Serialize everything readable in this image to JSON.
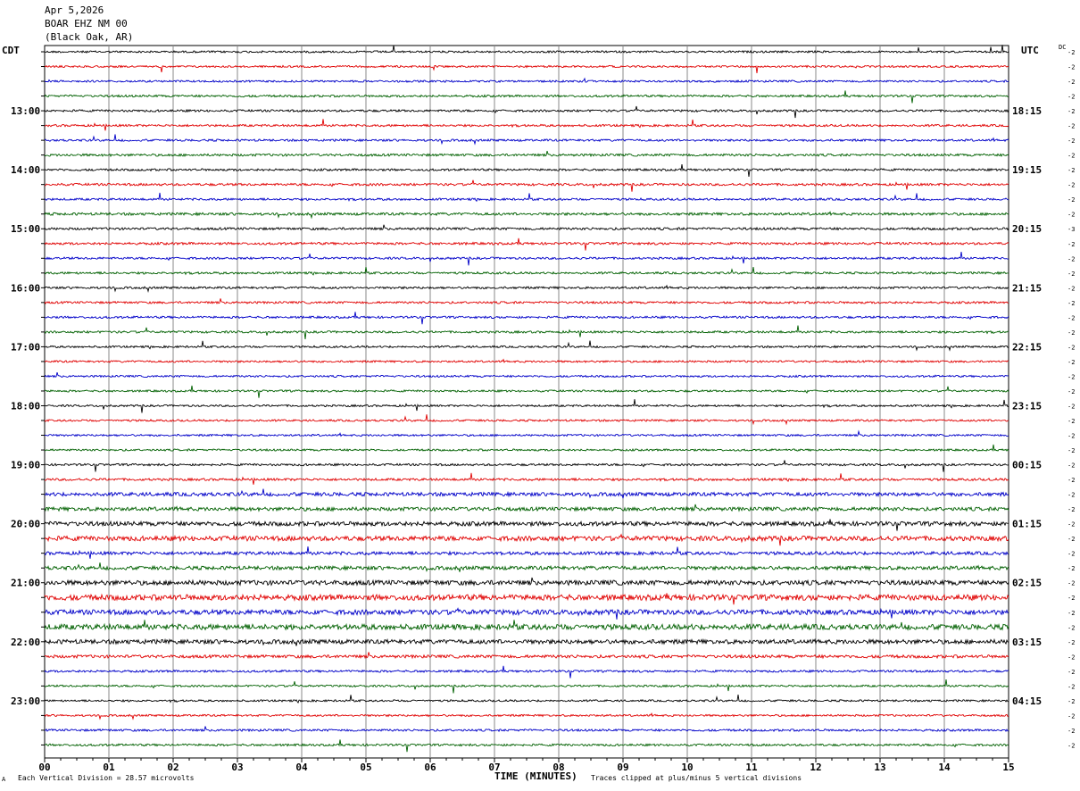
{
  "header": {
    "date": "Apr 5,2026",
    "station": "BOAR EHZ NM 00",
    "location": "(Black Oak, AR)"
  },
  "left_zone": "CDT",
  "right_zone": "UTC",
  "dc_label": "DC",
  "footer": {
    "xlabel": "TIME (MINUTES)",
    "scale_text": "Each Vertical Division =   28.57 microvolts",
    "clip_text": "Traces clipped at plus/minus 5 vertical divisions",
    "corner_mark": "A"
  },
  "chart_data": {
    "type": "line",
    "xlabel": "TIME (MINUTES)",
    "xlim": [
      0,
      15
    ],
    "x_ticks": [
      "00",
      "01",
      "02",
      "03",
      "04",
      "05",
      "06",
      "07",
      "08",
      "09",
      "10",
      "11",
      "12",
      "13",
      "14",
      "15"
    ],
    "left_hour_labels": [
      "13:00",
      "14:00",
      "15:00",
      "16:00",
      "17:00",
      "18:00",
      "19:00",
      "20:00",
      "21:00",
      "22:00",
      "23:00"
    ],
    "right_hour_labels": [
      "18:15",
      "19:15",
      "20:15",
      "21:15",
      "22:15",
      "23:15",
      "00:15",
      "01:15",
      "02:15",
      "03:15",
      "04:15"
    ],
    "trace_colors": [
      "#000000",
      "#e00000",
      "#0000c8",
      "#006000"
    ],
    "trace_count": 48,
    "trace_offsets": [
      "-2",
      "-2",
      "-2",
      "-2",
      "-2",
      "-2",
      "-2",
      "-2",
      "-2",
      "-2",
      "-2",
      "-2",
      "-3",
      "-2",
      "-2",
      "-2",
      "-2",
      "-2",
      "-2",
      "-2",
      "-2",
      "-2",
      "-2",
      "-2",
      "-2",
      "-2",
      "-2",
      "-2",
      "-2",
      "-2",
      "-2",
      "-2",
      "-2",
      "-2",
      "-2",
      "-2",
      "-2",
      "-2",
      "-2",
      "-2",
      "-2",
      "-2",
      "-2",
      "-2",
      "-2",
      "-2",
      "-2",
      "-2"
    ],
    "noise_level": [
      0.9,
      0.9,
      0.9,
      1.0,
      1.0,
      1.0,
      1.0,
      1.1,
      1.0,
      1.1,
      1.0,
      1.2,
      1.1,
      1.1,
      1.0,
      1.0,
      1.0,
      1.0,
      1.0,
      1.0,
      0.9,
      0.9,
      0.9,
      0.9,
      0.9,
      0.9,
      0.9,
      0.9,
      1.0,
      1.1,
      1.7,
      1.7,
      2.0,
      2.2,
      1.5,
      1.7,
      2.2,
      2.6,
      2.3,
      2.5,
      2.0,
      1.4,
      1.0,
      0.9,
      0.9,
      0.9,
      1.0,
      1.0
    ],
    "scale_microvolts": 28.57,
    "clip_divisions": 5
  }
}
